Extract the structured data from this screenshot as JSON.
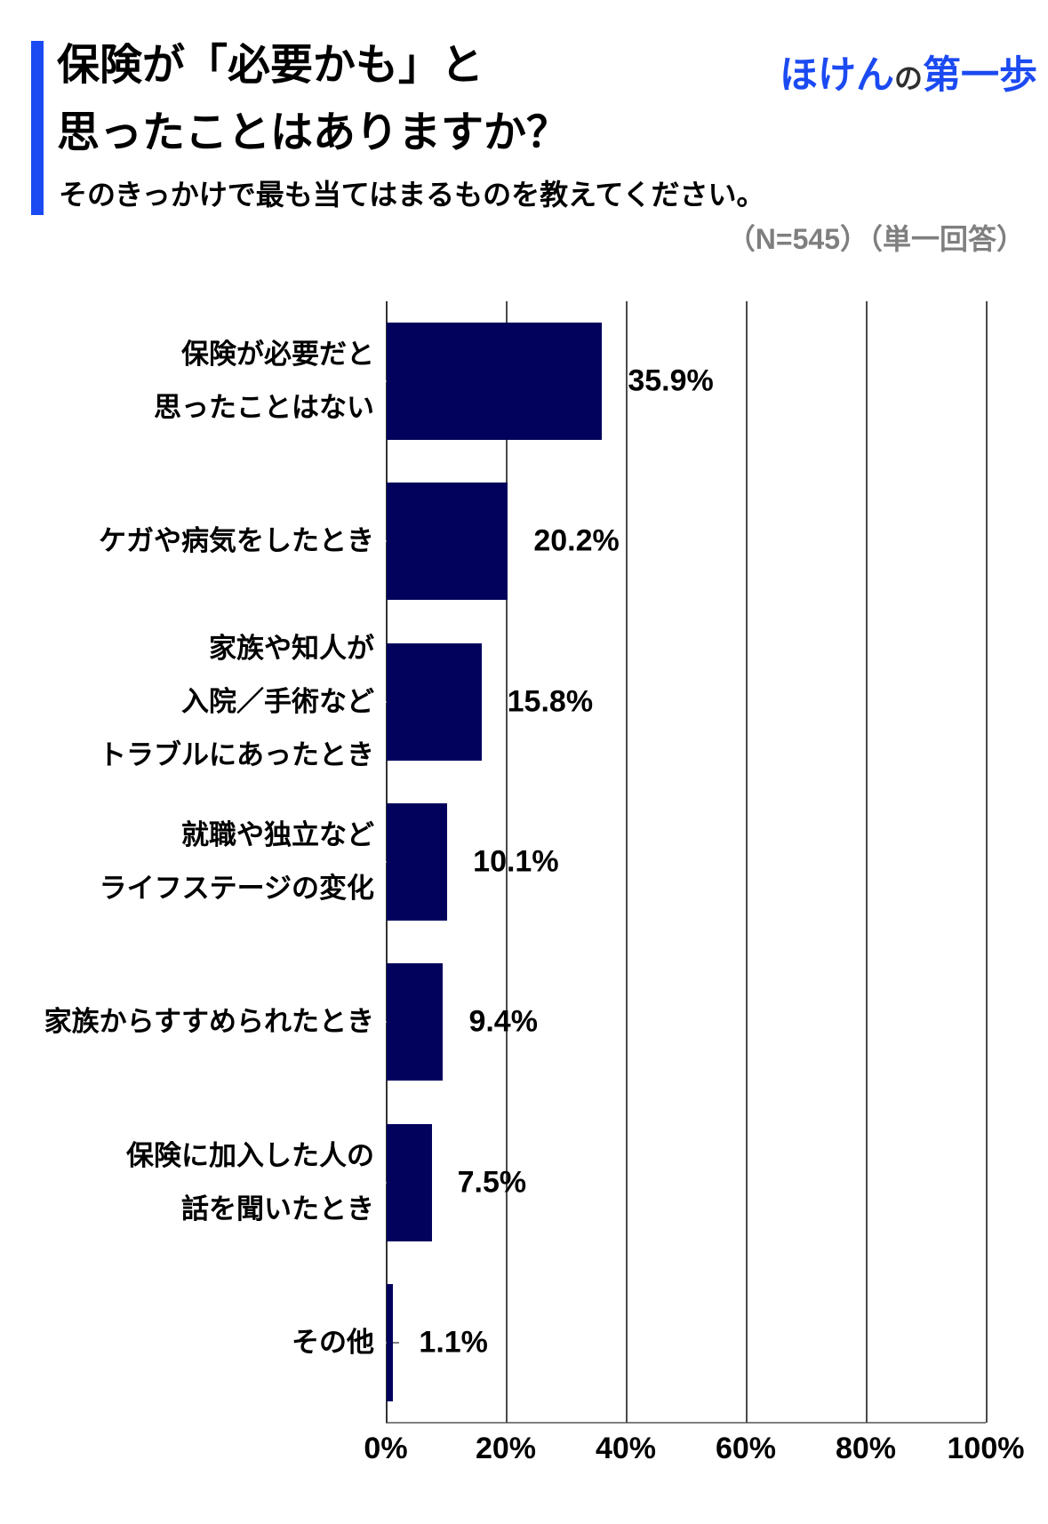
{
  "header": {
    "title_line1": "保険が「必要かも」と",
    "title_line2": "思ったことはありますか？",
    "subtitle": "そのきっかけで最も当てはまるものを教えてください。",
    "sample_note": "（N=545）（単一回答）",
    "logo": {
      "part_hoken": "ほけん",
      "part_no": "の",
      "part_daiippo": "第一歩"
    }
  },
  "colors": {
    "accent_blue": "#1b4af2",
    "bar_navy": "#02025d",
    "note_gray": "#7f7f7f",
    "grid_gray": "#4a4a4a",
    "axis_gray": "#808080"
  },
  "chart_data": {
    "type": "bar",
    "orientation": "horizontal",
    "title": "保険が「必要かも」と思ったことはありますか？そのきっかけで最も当てはまるものを教えてください。",
    "sample_size": "N=545",
    "answer_type": "単一回答",
    "categories": [
      "保険が必要だと\n思ったことはない",
      "ケガや病気をしたとき",
      "家族や知人が\n入院／手術など\nトラブルにあったとき",
      "就職や独立など\nライフステージの変化",
      "家族からすすめられたとき",
      "保険に加入した人の\n話を聞いたとき",
      "その他"
    ],
    "values": [
      35.9,
      20.2,
      15.8,
      10.1,
      9.4,
      7.5,
      1.1
    ],
    "value_labels": [
      "35.9%",
      "20.2%",
      "15.8%",
      "10.1%",
      "9.4%",
      "7.5%",
      "1.1%"
    ],
    "x_tick_labels": [
      "0%",
      "20%",
      "40%",
      "60%",
      "80%",
      "100%"
    ],
    "xlim": [
      0,
      100
    ],
    "grid": true,
    "legend": false
  }
}
